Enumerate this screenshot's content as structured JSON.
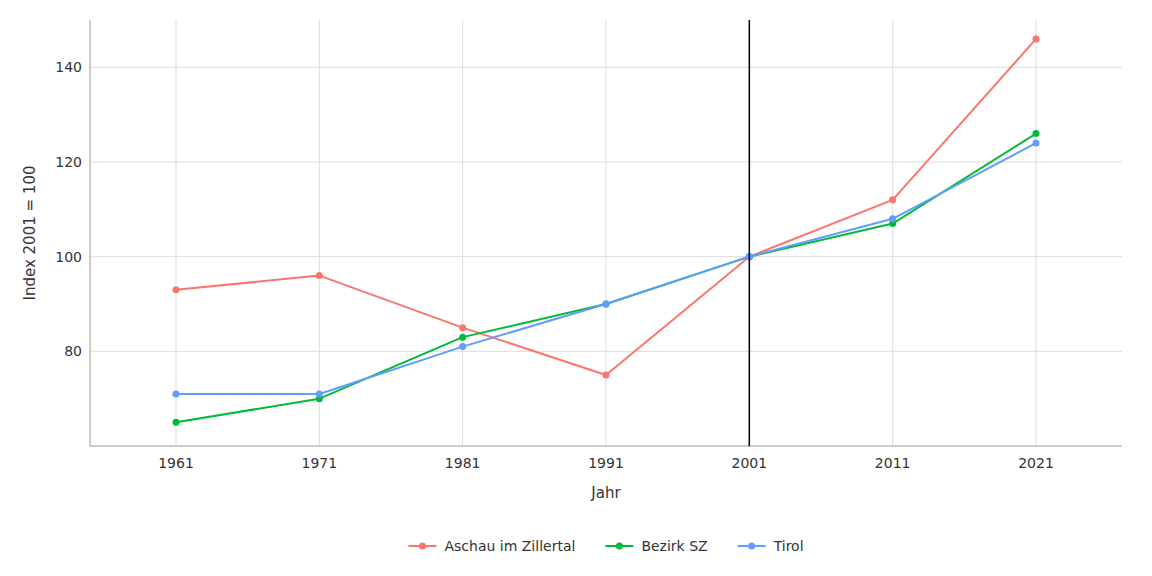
{
  "chart_data": {
    "type": "line",
    "x_label": "Jahr",
    "y_label": "Index 2001 = 100",
    "x": [
      1961,
      1971,
      1981,
      1991,
      2001,
      2011,
      2021
    ],
    "series": [
      {
        "name": "Aschau im Zillertal",
        "color": "#F8766D",
        "values": [
          93,
          96,
          85,
          75,
          100,
          112,
          146
        ]
      },
      {
        "name": "Bezirk SZ",
        "color": "#00BA38",
        "values": [
          65,
          70,
          83,
          90,
          100,
          107,
          126
        ]
      },
      {
        "name": "Tirol",
        "color": "#619CFF",
        "values": [
          71,
          71,
          81,
          90,
          100,
          108,
          124
        ]
      }
    ],
    "vline": 2001,
    "xlim": [
      1955,
      2027
    ],
    "xticks": [
      1961,
      1971,
      1981,
      1991,
      2001,
      2011,
      2021
    ],
    "ylim": [
      60,
      150
    ],
    "yticks": [
      80,
      100,
      120,
      140
    ],
    "grid": true,
    "legend": "bottom",
    "marker": "circle"
  }
}
